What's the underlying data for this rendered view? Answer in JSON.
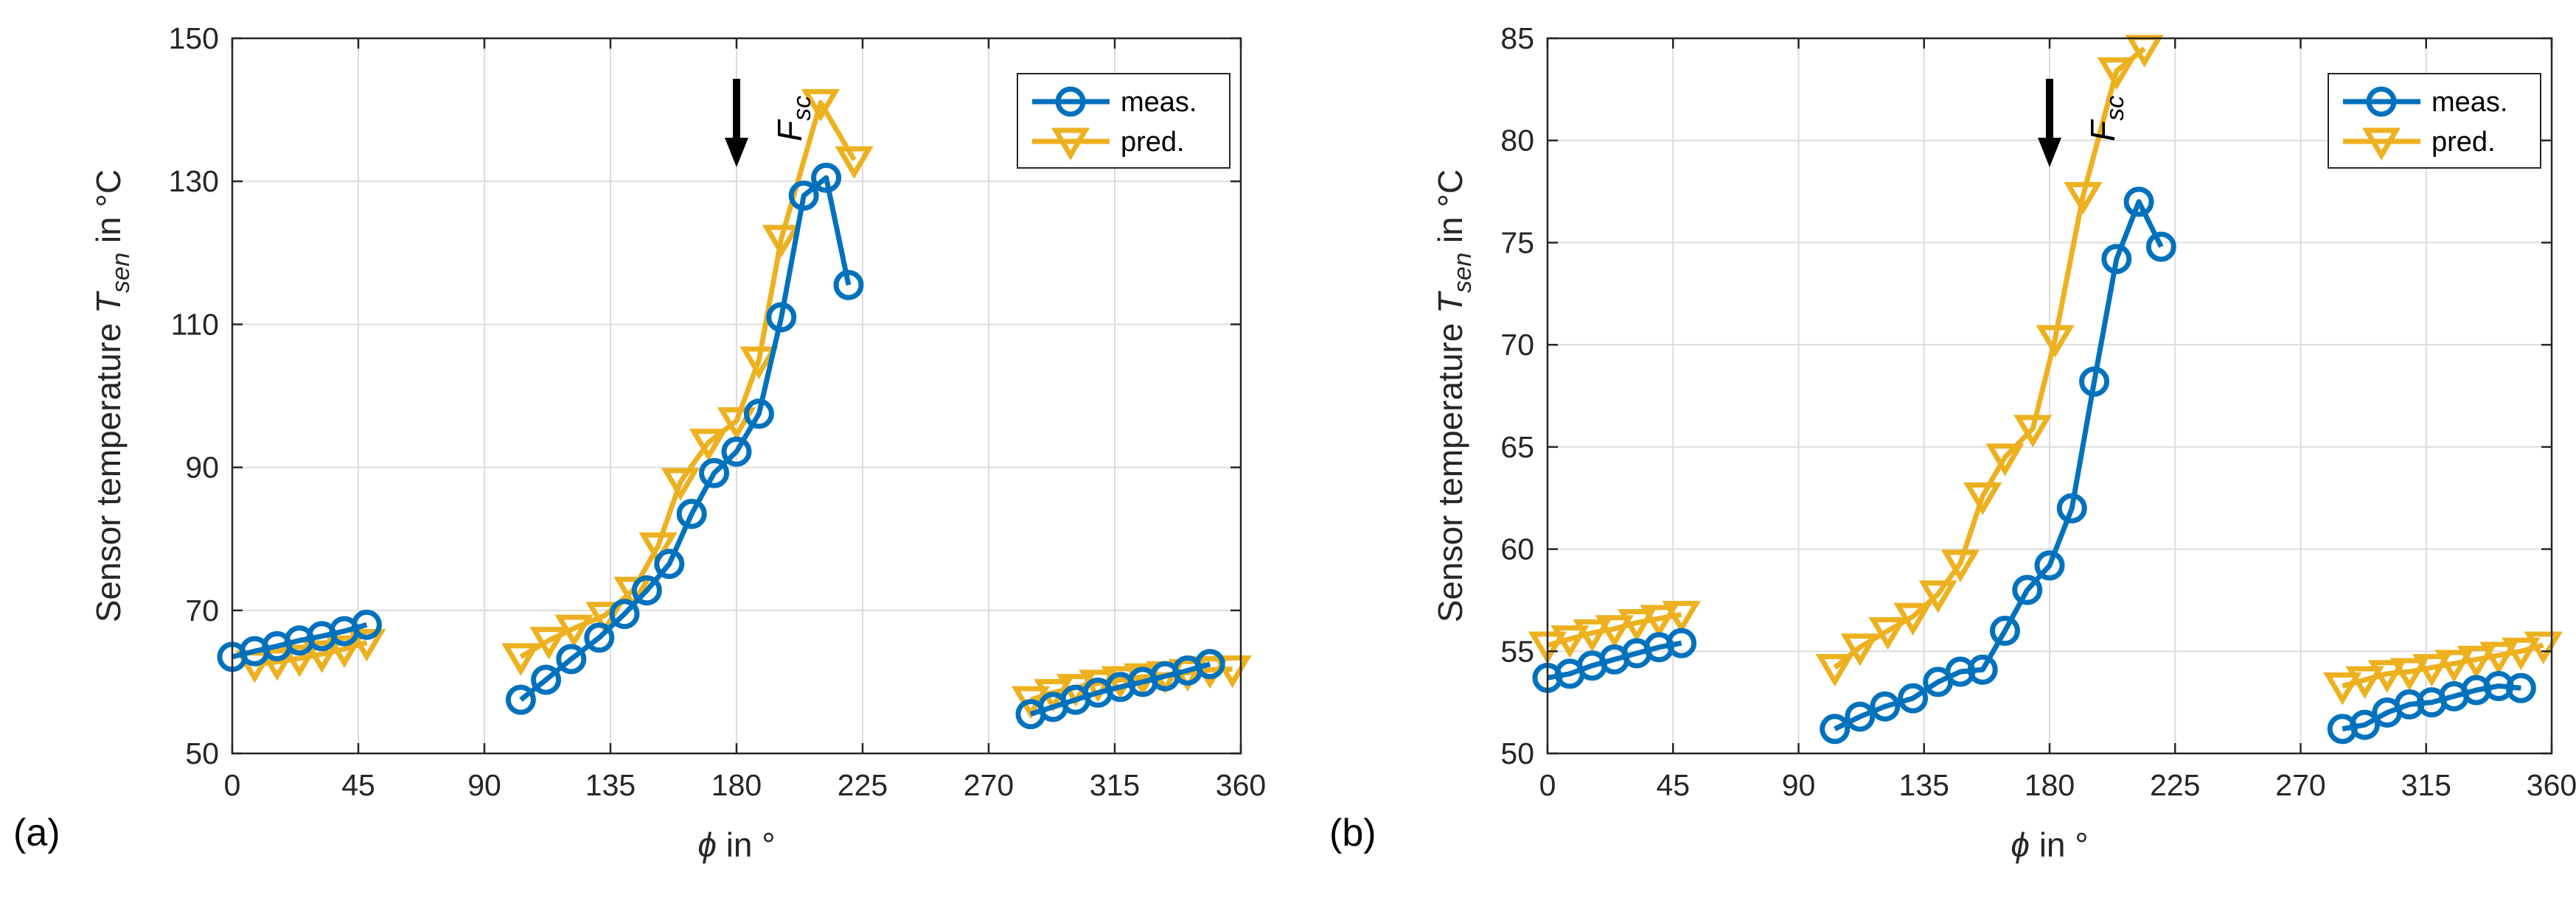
{
  "colors": {
    "meas": "#0072BD",
    "pred": "#EDB120",
    "axis": "#262626",
    "grid": "#dcdcdc"
  },
  "chart_data": [
    {
      "type": "line",
      "panel_label": "(a)",
      "ylabel": "Sensor temperature",
      "ylabel_symbol": "T",
      "ylabel_sub": "sen",
      "ylabel_unit": "in °C",
      "xlabel_symbol": "ϕ",
      "xlabel_unit": "in °",
      "xlim": [
        0,
        360
      ],
      "ylim": [
        50,
        150
      ],
      "xticks": [
        0,
        45,
        90,
        135,
        180,
        225,
        270,
        315,
        360
      ],
      "yticks": [
        50,
        70,
        90,
        110,
        130,
        150
      ],
      "grid": true,
      "legend": {
        "position": "top-right",
        "entries": [
          "meas.",
          "pred."
        ]
      },
      "annotation": {
        "label": "F",
        "sub": "sc",
        "x": 180
      },
      "series": [
        {
          "name": "meas.",
          "marker": "circle",
          "segments": [
            [
              [
                0,
                63.5
              ],
              [
                8,
                64.3
              ],
              [
                16,
                65
              ],
              [
                24,
                65.8
              ],
              [
                32,
                66.4
              ],
              [
                40,
                67.1
              ],
              [
                48,
                68
              ]
            ],
            [
              [
                103,
                57.5
              ],
              [
                112,
                60.3
              ],
              [
                121,
                63.2
              ],
              [
                131,
                66.2
              ],
              [
                140,
                69.5
              ],
              [
                148,
                72.8
              ],
              [
                156,
                76.5
              ],
              [
                164,
                83.5
              ],
              [
                172,
                89.2
              ],
              [
                180,
                92.2
              ],
              [
                188,
                97.5
              ],
              [
                196,
                111
              ],
              [
                204,
                128
              ],
              [
                212,
                130.5
              ],
              [
                220,
                115.5
              ]
            ],
            [
              [
                285,
                55.5
              ],
              [
                293,
                56.5
              ],
              [
                301,
                57.5
              ],
              [
                309,
                58.5
              ],
              [
                317,
                59.3
              ],
              [
                325,
                60
              ],
              [
                333,
                60.8
              ],
              [
                341,
                61.6
              ],
              [
                349,
                62.5
              ]
            ]
          ]
        },
        {
          "name": "pred.",
          "marker": "triangle-down",
          "segments": [
            [
              [
                8,
                62.5
              ],
              [
                16,
                62.8
              ],
              [
                24,
                63.3
              ],
              [
                32,
                63.9
              ],
              [
                40,
                64.6
              ],
              [
                48,
                65.5
              ]
            ],
            [
              [
                103,
                63.5
              ],
              [
                113,
                65.8
              ],
              [
                122,
                67.5
              ],
              [
                133,
                69.3
              ],
              [
                143,
                72.8
              ],
              [
                152,
                79
              ],
              [
                160,
                88
              ],
              [
                170,
                93.5
              ],
              [
                180,
                96.5
              ],
              [
                188,
                105
              ],
              [
                196,
                122
              ],
              [
                210,
                141
              ],
              [
                222,
                133
              ]
            ],
            [
              [
                285,
                57.5
              ],
              [
                293,
                58.5
              ],
              [
                301,
                59.2
              ],
              [
                309,
                59.8
              ],
              [
                317,
                60.3
              ],
              [
                325,
                60.7
              ],
              [
                333,
                61
              ],
              [
                341,
                61.3
              ],
              [
                349,
                61.7
              ],
              [
                357,
                61.8
              ]
            ]
          ]
        }
      ]
    },
    {
      "type": "line",
      "panel_label": "(b)",
      "ylabel": "Sensor temperature",
      "ylabel_symbol": "T",
      "ylabel_sub": "sen",
      "ylabel_unit": "in °C",
      "xlabel_symbol": "ϕ",
      "xlabel_unit": "in °",
      "xlim": [
        0,
        360
      ],
      "ylim": [
        50,
        85
      ],
      "xticks": [
        0,
        45,
        90,
        135,
        180,
        225,
        270,
        315,
        360
      ],
      "yticks": [
        50,
        55,
        60,
        65,
        70,
        75,
        80,
        85
      ],
      "grid": true,
      "legend": {
        "position": "top-right",
        "entries": [
          "meas.",
          "pred."
        ]
      },
      "annotation": {
        "label": "F",
        "sub": "sc",
        "x": 180
      },
      "series": [
        {
          "name": "meas.",
          "marker": "circle",
          "segments": [
            [
              [
                0,
                53.7
              ],
              [
                8,
                53.9
              ],
              [
                16,
                54.3
              ],
              [
                24,
                54.6
              ],
              [
                32,
                54.9
              ],
              [
                40,
                55.2
              ],
              [
                48,
                55.4
              ]
            ],
            [
              [
                103,
                51.2
              ],
              [
                112,
                51.8
              ],
              [
                121,
                52.3
              ],
              [
                131,
                52.7
              ],
              [
                140,
                53.5
              ],
              [
                148,
                54
              ],
              [
                156,
                54.1
              ],
              [
                164,
                56
              ],
              [
                172,
                58
              ],
              [
                180,
                59.2
              ],
              [
                188,
                62
              ],
              [
                196,
                68.2
              ],
              [
                204,
                74.2
              ],
              [
                212,
                77
              ],
              [
                220,
                74.8
              ]
            ],
            [
              [
                285,
                51.2
              ],
              [
                293,
                51.4
              ],
              [
                301,
                52
              ],
              [
                309,
                52.4
              ],
              [
                317,
                52.5
              ],
              [
                325,
                52.8
              ],
              [
                333,
                53.1
              ],
              [
                341,
                53.3
              ],
              [
                349,
                53.2
              ]
            ]
          ]
        },
        {
          "name": "pred.",
          "marker": "triangle-down",
          "segments": [
            [
              [
                0,
                55.3
              ],
              [
                8,
                55.6
              ],
              [
                16,
                55.9
              ],
              [
                24,
                56.1
              ],
              [
                32,
                56.4
              ],
              [
                40,
                56.6
              ],
              [
                48,
                56.8
              ]
            ],
            [
              [
                103,
                54.2
              ],
              [
                112,
                55.2
              ],
              [
                122,
                56
              ],
              [
                131,
                56.7
              ],
              [
                140,
                57.8
              ],
              [
                148,
                59.3
              ],
              [
                156,
                62.6
              ],
              [
                164,
                64.5
              ],
              [
                174,
                65.9
              ],
              [
                182,
                70.3
              ],
              [
                192,
                77.3
              ],
              [
                204,
                83.4
              ],
              [
                214,
                84.5
              ]
            ],
            [
              [
                285,
                53.3
              ],
              [
                293,
                53.6
              ],
              [
                301,
                53.9
              ],
              [
                309,
                54
              ],
              [
                317,
                54.2
              ],
              [
                325,
                54.4
              ],
              [
                333,
                54.6
              ],
              [
                341,
                54.8
              ],
              [
                349,
                55
              ],
              [
                357,
                55.3
              ]
            ]
          ]
        }
      ]
    }
  ]
}
